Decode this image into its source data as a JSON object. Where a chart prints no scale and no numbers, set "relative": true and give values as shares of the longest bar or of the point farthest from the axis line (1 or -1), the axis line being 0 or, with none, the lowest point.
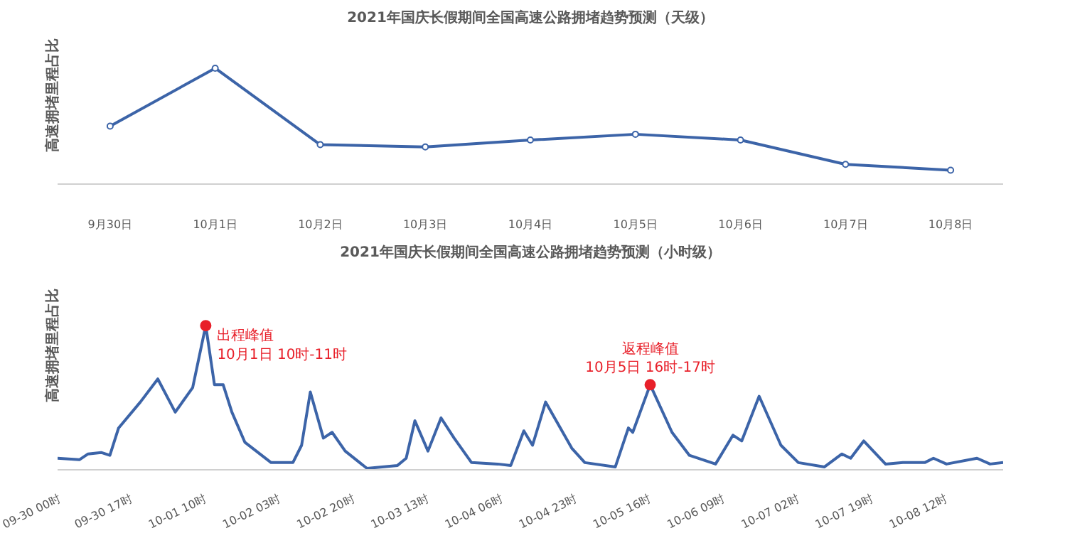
{
  "chart_data": [
    {
      "type": "line",
      "title": "2021年国庆长假期间全国高速公路拥堵趋势预测（天级）",
      "ylabel": "高速拥堵里程占比",
      "relative": true,
      "marker": "circle",
      "grid": false,
      "categories": [
        "9月30日",
        "10月1日",
        "10月2日",
        "10月3日",
        "10月4日",
        "10月5日",
        "10月6日",
        "10月7日",
        "10月8日"
      ],
      "series": [
        {
          "color": "#3c64a8",
          "values": [
            0.5,
            1,
            0.34,
            0.32,
            0.38,
            0.43,
            0.38,
            0.17,
            0.12
          ]
        }
      ]
    },
    {
      "type": "line",
      "title": "2021年国庆长假期间全国高速公路拥堵趋势预测（小时级）",
      "ylabel": "高速拥堵里程占比",
      "relative": true,
      "grid": false,
      "x": [
        "2021-09-30T00:00",
        "2021-09-30T05:00",
        "2021-09-30T07:00",
        "2021-09-30T10:00",
        "2021-09-30T12:00",
        "2021-09-30T14:00",
        "2021-09-30T19:00",
        "2021-09-30T23:00",
        "2021-10-01T03:00",
        "2021-10-01T07:00",
        "2021-10-01T10:00",
        "2021-10-01T12:00",
        "2021-10-01T14:00",
        "2021-10-01T16:00",
        "2021-10-01T19:00",
        "2021-10-02T01:00",
        "2021-10-02T06:00",
        "2021-10-02T08:00",
        "2021-10-02T10:00",
        "2021-10-02T13:00",
        "2021-10-02T15:00",
        "2021-10-02T18:00",
        "2021-10-02T23:00",
        "2021-10-03T06:00",
        "2021-10-03T08:00",
        "2021-10-03T10:00",
        "2021-10-03T13:00",
        "2021-10-03T16:00",
        "2021-10-03T19:00",
        "2021-10-03T23:00",
        "2021-10-04T05:00",
        "2021-10-04T08:00",
        "2021-10-04T11:00",
        "2021-10-04T13:00",
        "2021-10-04T16:00",
        "2021-10-04T22:00",
        "2021-10-05T01:00",
        "2021-10-05T08:00",
        "2021-10-05T11:00",
        "2021-10-05T12:00",
        "2021-10-05T16:00",
        "2021-10-05T21:00",
        "2021-10-06T01:00",
        "2021-10-06T07:00",
        "2021-10-06T11:00",
        "2021-10-06T13:00",
        "2021-10-06T17:00",
        "2021-10-06T22:00",
        "2021-10-07T02:00",
        "2021-10-07T08:00",
        "2021-10-07T12:00",
        "2021-10-07T14:00",
        "2021-10-07T17:00",
        "2021-10-07T22:00",
        "2021-10-08T02:00",
        "2021-10-08T07:00",
        "2021-10-08T09:00",
        "2021-10-08T12:00",
        "2021-10-08T19:00",
        "2021-10-08T22:00",
        "2021-10-09T01:00"
      ],
      "xlim": [
        "2021-09-30T00:00",
        "2021-10-09T01:00"
      ],
      "xticks": [
        {
          "value": "2021-09-30T00:00",
          "label": "09-30 00时"
        },
        {
          "value": "2021-09-30T17:00",
          "label": "09-30 17时"
        },
        {
          "value": "2021-10-01T10:00",
          "label": "10-01 10时"
        },
        {
          "value": "2021-10-02T03:00",
          "label": "10-02 03时"
        },
        {
          "value": "2021-10-02T20:00",
          "label": "10-02 20时"
        },
        {
          "value": "2021-10-03T13:00",
          "label": "10-03 13时"
        },
        {
          "value": "2021-10-04T06:00",
          "label": "10-04 06时"
        },
        {
          "value": "2021-10-04T23:00",
          "label": "10-04 23时"
        },
        {
          "value": "2021-10-05T16:00",
          "label": "10-05 16时"
        },
        {
          "value": "2021-10-06T09:00",
          "label": "10-06 09时"
        },
        {
          "value": "2021-10-07T02:00",
          "label": "10-07 02时"
        },
        {
          "value": "2021-10-07T19:00",
          "label": "10-07 19时"
        },
        {
          "value": "2021-10-08T12:00",
          "label": "10-08 12时"
        }
      ],
      "series": [
        {
          "color": "#3c64a8",
          "values": [
            0.08,
            0.07,
            0.11,
            0.12,
            0.1,
            0.29,
            0.47,
            0.63,
            0.4,
            0.57,
            1,
            0.59,
            0.59,
            0.4,
            0.19,
            0.05,
            0.05,
            0.17,
            0.54,
            0.22,
            0.26,
            0.13,
            0.01,
            0.03,
            0.08,
            0.34,
            0.13,
            0.36,
            0.22,
            0.05,
            0.04,
            0.03,
            0.27,
            0.17,
            0.47,
            0.15,
            0.05,
            0.02,
            0.29,
            0.26,
            0.59,
            0.26,
            0.1,
            0.04,
            0.24,
            0.2,
            0.51,
            0.17,
            0.05,
            0.02,
            0.11,
            0.08,
            0.2,
            0.04,
            0.05,
            0.05,
            0.08,
            0.04,
            0.08,
            0.04,
            0.05
          ]
        }
      ],
      "annotations": [
        {
          "text": "出程峰值\n10月1日 10时-11时",
          "x": "2021-10-01T10:00",
          "y": 1
        },
        {
          "text": "返程峰值\n10月5日 16时-17时",
          "x": "2021-10-05T16:00",
          "y": 0.59
        }
      ]
    }
  ]
}
